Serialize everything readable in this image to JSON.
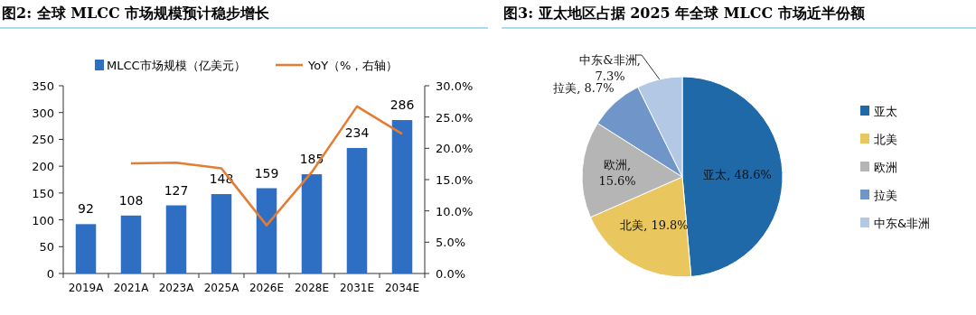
{
  "chart_data": [
    {
      "type": "bar",
      "title": "图2: 全球 MLCC 市场规模预计稳步增长",
      "categories": [
        "2019A",
        "2021A",
        "2023A",
        "2025A",
        "2026E",
        "2028E",
        "2031E",
        "2034E"
      ],
      "series": [
        {
          "name": "MLCC市场规模（亿美元）",
          "type": "bar",
          "color": "#2e6fc4",
          "values": [
            92,
            108,
            127,
            148,
            159,
            185,
            234,
            286
          ],
          "value_labels": [
            "92",
            "108",
            "127",
            "148",
            "159",
            "185",
            "234",
            "286"
          ]
        },
        {
          "name": "YoY（%，右轴）",
          "type": "line",
          "axis": "y2",
          "color": "#e47c32",
          "values": [
            null,
            17.6,
            17.7,
            16.8,
            7.7,
            16.2,
            26.7,
            22.3
          ]
        }
      ],
      "ylim": [
        0,
        350
      ],
      "yticks": [
        0,
        50,
        100,
        150,
        200,
        250,
        300,
        350
      ],
      "y2lim": [
        0,
        30
      ],
      "y2ticks": [
        {
          "value": 0,
          "label": "0.0%"
        },
        {
          "value": 5,
          "label": "5.0%"
        },
        {
          "value": 10,
          "label": "10.0%"
        },
        {
          "value": 15,
          "label": "15.0%"
        },
        {
          "value": 20,
          "label": "20.0%"
        },
        {
          "value": 25,
          "label": "25.0%"
        },
        {
          "value": 30,
          "label": "30.0%"
        }
      ],
      "legend": "top",
      "grid": false
    },
    {
      "type": "pie",
      "title": "图3: 亚太地区占据 2025 年全球 MLCC 市场近半份额",
      "categories": [
        "亚太",
        "北美",
        "欧洲",
        "拉美",
        "中东&非洲"
      ],
      "values": [
        48.6,
        19.8,
        15.6,
        8.7,
        7.3
      ],
      "colors": [
        "#1f69a8",
        "#e9c75e",
        "#b5b5b5",
        "#6f95c9",
        "#b3c8e4"
      ],
      "value_labels": [
        "亚太, 48.6%",
        "北美, 19.8%",
        "欧洲, 15.6%",
        "拉美, 8.7%",
        "中东&非洲, 7.3%"
      ],
      "legend": "right"
    }
  ]
}
